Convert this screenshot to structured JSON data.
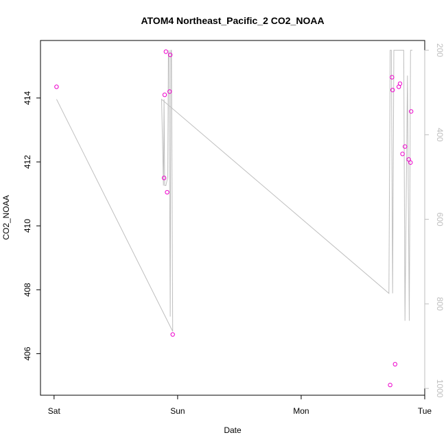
{
  "chart_data": {
    "type": "scatter",
    "title": "ATOM4 Northeast_Pacific_2 CO2_NOAA",
    "xlabel": "Date",
    "ylabel": "CO2_NOAA",
    "x_ticks": [
      "Sat",
      "Sun",
      "Mon",
      "Tue"
    ],
    "x_tick_pos": [
      0,
      1,
      2,
      3
    ],
    "xlim": [
      -0.11,
      3.0
    ],
    "ylim": [
      404.7,
      415.8
    ],
    "y_ticks": [
      406,
      408,
      410,
      412,
      414
    ],
    "y2_ticks": [
      200,
      400,
      600,
      800,
      1000
    ],
    "y2lim": [
      1016,
      177
    ],
    "grid": false,
    "series": [
      {
        "role": "points",
        "color": "#ee00cc",
        "x": [
          0.02,
          0.89,
          0.895,
          0.905,
          0.915,
          0.935,
          0.94,
          0.96,
          2.72,
          2.735,
          2.74,
          2.76,
          2.79,
          2.8,
          2.82,
          2.84,
          2.87,
          2.885,
          2.89
        ],
        "y": [
          414.35,
          411.5,
          414.1,
          415.45,
          411.05,
          414.2,
          415.35,
          406.6,
          405.02,
          414.65,
          414.25,
          405.67,
          414.35,
          414.45,
          412.25,
          412.48,
          412.08,
          411.98,
          413.58
        ]
      },
      {
        "role": "altitude",
        "color": "#bebebe",
        "x": [
          0.02,
          0.96,
          0.95,
          0.945,
          0.94,
          0.93,
          0.925,
          0.92,
          0.905,
          0.895,
          0.89,
          0.885,
          0.87,
          2.71,
          2.72,
          2.73,
          2.74,
          2.75,
          2.765,
          2.78,
          2.79,
          2.8,
          2.81,
          2.82,
          2.83,
          2.84,
          2.86,
          2.875,
          2.885,
          2.9
        ],
        "y": [
          316,
          865,
          200,
          200,
          830,
          200,
          210,
          500,
          520,
          520,
          316,
          520,
          316,
          775,
          200,
          200,
          775,
          200,
          200,
          200,
          200,
          200,
          200,
          200,
          200,
          840,
          260,
          840,
          200,
          200
        ]
      }
    ]
  }
}
